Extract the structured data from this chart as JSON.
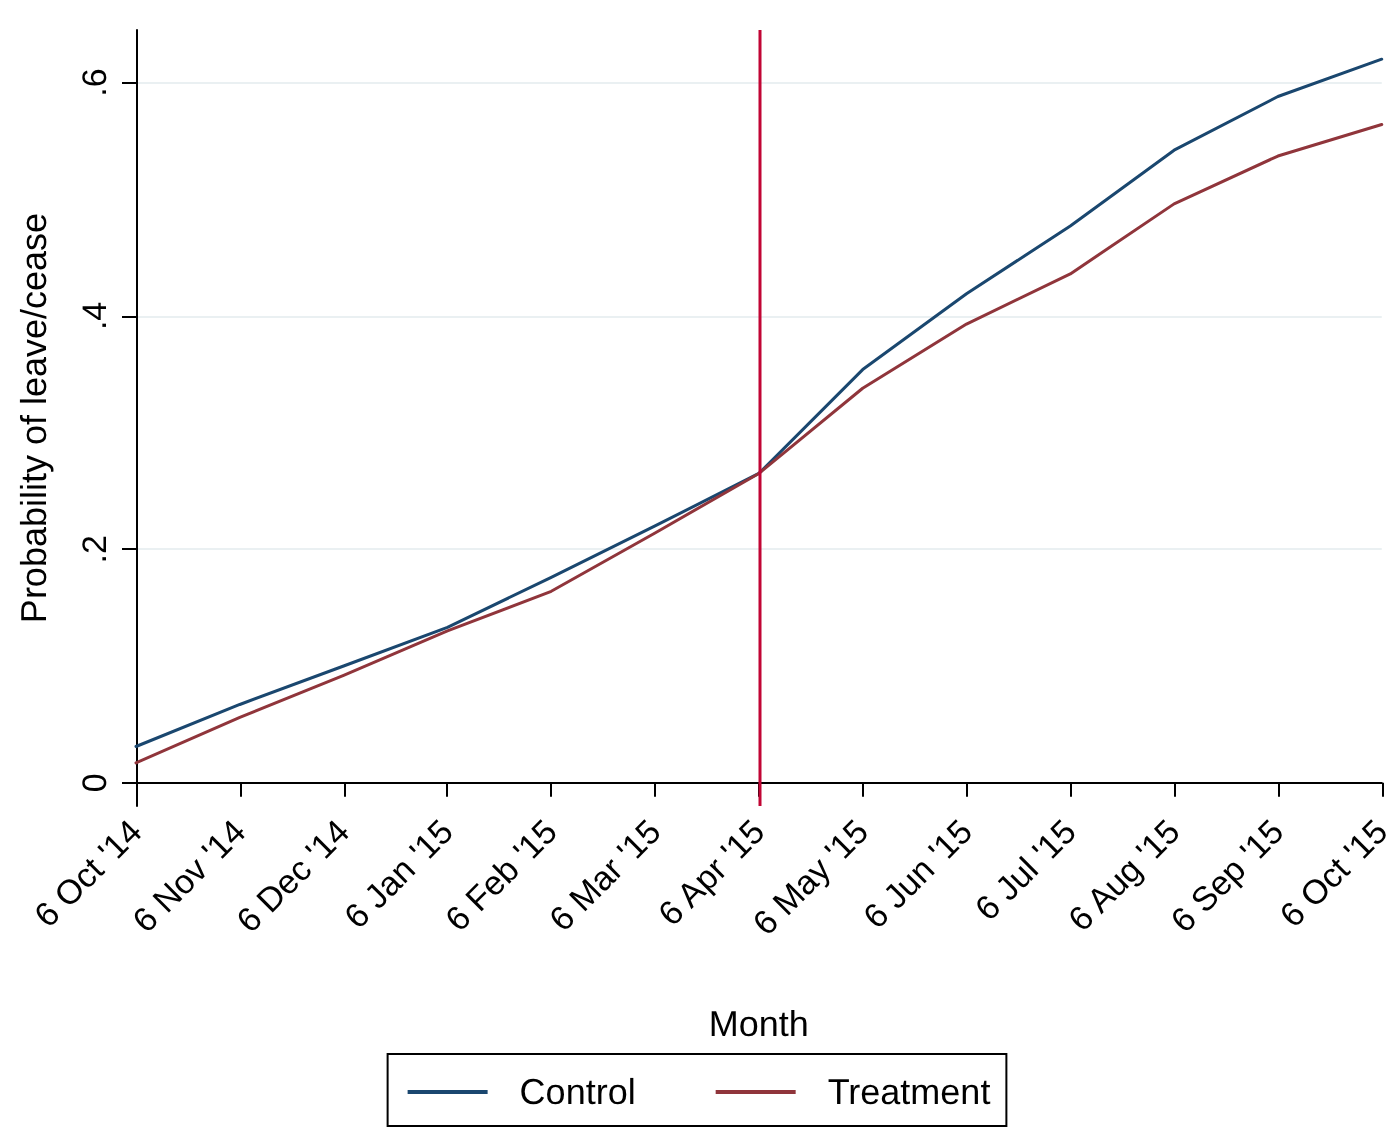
{
  "chart_data": {
    "type": "line",
    "xlabel": "Month",
    "ylabel": "Probability of leave/cease",
    "categories": [
      "6 Oct '14",
      "6 Nov '14",
      "6 Dec '14",
      "6 Jan '15",
      "6 Feb '15",
      "6 Mar '15",
      "6 Apr '15",
      "6 May '15",
      "6 Jun '15",
      "6 Jul '15",
      "6 Aug '15",
      "6 Sep '15",
      "6 Oct '15"
    ],
    "series": [
      {
        "name": "Control",
        "color": "#1a476f",
        "values": [
          0.031,
          0.067,
          0.1,
          0.133,
          0.176,
          0.22,
          0.265,
          0.354,
          0.419,
          0.477,
          0.542,
          0.588,
          0.62
        ]
      },
      {
        "name": "Treatment",
        "color": "#90353b",
        "values": [
          0.017,
          0.056,
          0.092,
          0.13,
          0.164,
          0.214,
          0.265,
          0.338,
          0.393,
          0.436,
          0.496,
          0.537,
          0.564
        ]
      }
    ],
    "ylim": [
      -0.02,
      0.645
    ],
    "yticks": [
      0,
      {
        "value": 0.2,
        "label": ".2"
      },
      {
        "value": 0.4,
        "label": ".4"
      },
      {
        "value": 0.6,
        "label": ".6"
      }
    ],
    "ref_lines": [
      {
        "axis": "x",
        "value": "6 Apr '15",
        "color": "#c10534"
      }
    ],
    "grid": "y",
    "legend": "bottom",
    "marker": "none",
    "line_style": "solid"
  }
}
